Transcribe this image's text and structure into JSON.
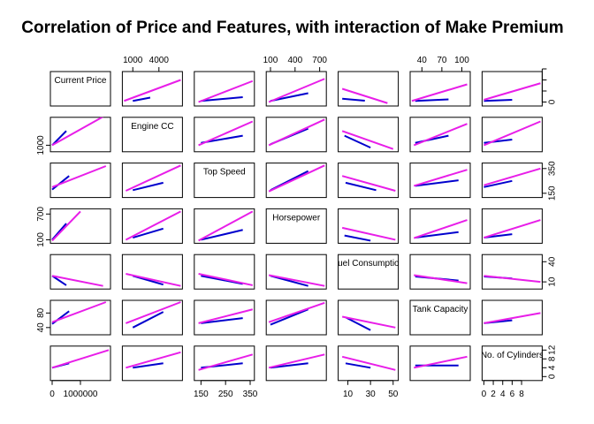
{
  "chart_data": {
    "type": "scatter-matrix",
    "title": "Correlation of Price and Features, with interaction of Make Premium",
    "variables": [
      "Current Price",
      "Engine CC",
      "Top Speed",
      "Horsepower",
      "Fuel Consumption",
      "Tank Capacity",
      "No. of Cylinders"
    ],
    "colors": {
      "blue": "#0000CD",
      "magenta": "#E81EE8"
    },
    "axes": [
      {
        "range": [
          0,
          2000000
        ],
        "ticks": [
          0,
          1000000
        ],
        "tick_labels": [
          "0",
          "1000000"
        ],
        "side": "bottom"
      },
      {
        "range": [
          0,
          6500
        ],
        "ticks": [
          1000,
          4000
        ],
        "tick_labels": [
          "1000",
          "4000"
        ],
        "side": "top"
      },
      {
        "range": [
          130,
          360
        ],
        "ticks": [
          150,
          250,
          350
        ],
        "tick_labels": [
          "150",
          "250",
          "350"
        ],
        "side": "bottom"
      },
      {
        "range": [
          70,
          760
        ],
        "ticks": [
          100,
          400,
          700
        ],
        "tick_labels": [
          "100",
          "400",
          "700"
        ],
        "side": "top"
      },
      {
        "range": [
          3,
          53
        ],
        "ticks": [
          10,
          30,
          50
        ],
        "tick_labels": [
          "10",
          "30",
          "50"
        ],
        "side": "bottom"
      },
      {
        "range": [
          25,
          110
        ],
        "ticks": [
          40,
          70,
          100
        ],
        "tick_labels": [
          "40",
          "70",
          "100"
        ],
        "side": "top"
      },
      {
        "range": [
          0,
          12
        ],
        "ticks": [
          0,
          2,
          4,
          6,
          8
        ],
        "tick_labels": [
          "0",
          "2",
          "4",
          "6",
          "8"
        ],
        "side": "bottom"
      }
    ],
    "axes_y": [
      {
        "ticks": [
          0
        ],
        "tick_labels": [
          "0"
        ],
        "side": "right",
        "minor_ticks": [
          500000,
          1000000,
          1500000
        ]
      },
      {
        "ticks": [
          1000
        ],
        "tick_labels": [
          "1000"
        ],
        "side": "left"
      },
      {
        "ticks": [
          150,
          350
        ],
        "tick_labels": [
          "150",
          "350"
        ],
        "side": "right"
      },
      {
        "ticks": [
          100,
          700
        ],
        "tick_labels": [
          "100",
          "700"
        ],
        "side": "left"
      },
      {
        "ticks": [
          10,
          40
        ],
        "tick_labels": [
          "10",
          "40"
        ],
        "side": "right"
      },
      {
        "ticks": [
          40,
          80
        ],
        "tick_labels": [
          "40",
          "80"
        ],
        "side": "left"
      },
      {
        "ticks": [
          0,
          4,
          8,
          12
        ],
        "tick_labels": [
          "0",
          "4",
          "8",
          "12"
        ],
        "side": "right"
      }
    ],
    "lines": [
      {
        "row": 0,
        "col": 1,
        "blue": [
          [
            1000,
            50000
          ],
          [
            3000,
            200000
          ]
        ],
        "magenta": [
          [
            0,
            50000
          ],
          [
            6500,
            1000000
          ]
        ]
      },
      {
        "row": 0,
        "col": 2,
        "blue": [
          [
            150,
            50000
          ],
          [
            320,
            220000
          ]
        ],
        "magenta": [
          [
            140,
            0
          ],
          [
            360,
            950000
          ]
        ]
      },
      {
        "row": 0,
        "col": 3,
        "blue": [
          [
            100,
            50000
          ],
          [
            560,
            400000
          ]
        ],
        "magenta": [
          [
            80,
            0
          ],
          [
            760,
            1050000
          ]
        ]
      },
      {
        "row": 0,
        "col": 4,
        "blue": [
          [
            5,
            150000
          ],
          [
            25,
            60000
          ]
        ],
        "magenta": [
          [
            5,
            600000
          ],
          [
            45,
            -50000
          ]
        ]
      },
      {
        "row": 0,
        "col": 5,
        "blue": [
          [
            30,
            50000
          ],
          [
            80,
            120000
          ]
        ],
        "magenta": [
          [
            25,
            50000
          ],
          [
            108,
            800000
          ]
        ]
      },
      {
        "row": 0,
        "col": 6,
        "blue": [
          [
            0,
            50000
          ],
          [
            6,
            100000
          ]
        ],
        "magenta": [
          [
            0,
            100000
          ],
          [
            12,
            850000
          ]
        ]
      },
      {
        "row": 1,
        "col": 0,
        "blue": [
          [
            0,
            1000
          ],
          [
            500000,
            4000
          ]
        ],
        "magenta": [
          [
            0,
            1000
          ],
          [
            1800000,
            7000
          ]
        ]
      },
      {
        "row": 1,
        "col": 2,
        "blue": [
          [
            150,
            1500
          ],
          [
            320,
            3000
          ]
        ],
        "magenta": [
          [
            140,
            1000
          ],
          [
            360,
            6000
          ]
        ]
      },
      {
        "row": 1,
        "col": 3,
        "blue": [
          [
            100,
            1200
          ],
          [
            560,
            4500
          ]
        ],
        "magenta": [
          [
            80,
            1000
          ],
          [
            760,
            6400
          ]
        ]
      },
      {
        "row": 1,
        "col": 4,
        "blue": [
          [
            7,
            3000
          ],
          [
            30,
            500
          ]
        ],
        "magenta": [
          [
            5,
            4000
          ],
          [
            50,
            200
          ]
        ]
      },
      {
        "row": 1,
        "col": 5,
        "blue": [
          [
            30,
            1500
          ],
          [
            80,
            3000
          ]
        ],
        "magenta": [
          [
            28,
            1000
          ],
          [
            108,
            5500
          ]
        ]
      },
      {
        "row": 1,
        "col": 6,
        "blue": [
          [
            0,
            1500
          ],
          [
            6,
            2200
          ]
        ],
        "magenta": [
          [
            0,
            1000
          ],
          [
            12,
            6000
          ]
        ]
      },
      {
        "row": 2,
        "col": 0,
        "blue": [
          [
            0,
            180
          ],
          [
            600000,
            290
          ]
        ],
        "magenta": [
          [
            0,
            200
          ],
          [
            1900000,
            370
          ]
        ]
      },
      {
        "row": 2,
        "col": 1,
        "blue": [
          [
            1000,
            175
          ],
          [
            4500,
            235
          ]
        ],
        "magenta": [
          [
            200,
            170
          ],
          [
            6500,
            375
          ]
        ]
      },
      {
        "row": 2,
        "col": 3,
        "blue": [
          [
            100,
            175
          ],
          [
            560,
            330
          ]
        ],
        "magenta": [
          [
            80,
            165
          ],
          [
            760,
            375
          ]
        ]
      },
      {
        "row": 2,
        "col": 4,
        "blue": [
          [
            8,
            235
          ],
          [
            35,
            175
          ]
        ],
        "magenta": [
          [
            5,
            290
          ],
          [
            52,
            170
          ]
        ]
      },
      {
        "row": 2,
        "col": 5,
        "blue": [
          [
            30,
            210
          ],
          [
            95,
            255
          ]
        ],
        "magenta": [
          [
            28,
            210
          ],
          [
            108,
            340
          ]
        ]
      },
      {
        "row": 2,
        "col": 6,
        "blue": [
          [
            0,
            200
          ],
          [
            6,
            250
          ]
        ],
        "magenta": [
          [
            0,
            215
          ],
          [
            12,
            350
          ]
        ]
      },
      {
        "row": 3,
        "col": 0,
        "blue": [
          [
            0,
            100
          ],
          [
            500000,
            480
          ]
        ],
        "magenta": [
          [
            0,
            80
          ],
          [
            1000000,
            760
          ]
        ]
      },
      {
        "row": 3,
        "col": 1,
        "blue": [
          [
            1000,
            150
          ],
          [
            4500,
            360
          ]
        ],
        "magenta": [
          [
            200,
            100
          ],
          [
            6500,
            760
          ]
        ]
      },
      {
        "row": 3,
        "col": 2,
        "blue": [
          [
            150,
            100
          ],
          [
            320,
            330
          ]
        ],
        "magenta": [
          [
            140,
            80
          ],
          [
            360,
            760
          ]
        ]
      },
      {
        "row": 3,
        "col": 4,
        "blue": [
          [
            7,
            200
          ],
          [
            30,
            80
          ]
        ],
        "magenta": [
          [
            5,
            380
          ],
          [
            52,
            100
          ]
        ]
      },
      {
        "row": 3,
        "col": 5,
        "blue": [
          [
            30,
            150
          ],
          [
            95,
            280
          ]
        ],
        "magenta": [
          [
            28,
            140
          ],
          [
            108,
            560
          ]
        ]
      },
      {
        "row": 3,
        "col": 6,
        "blue": [
          [
            0,
            150
          ],
          [
            6,
            230
          ]
        ],
        "magenta": [
          [
            0,
            150
          ],
          [
            12,
            560
          ]
        ]
      },
      {
        "row": 4,
        "col": 0,
        "blue": [
          [
            0,
            19
          ],
          [
            500000,
            5
          ]
        ],
        "magenta": [
          [
            0,
            19
          ],
          [
            1800000,
            4
          ]
        ]
      },
      {
        "row": 4,
        "col": 1,
        "blue": [
          [
            1000,
            19
          ],
          [
            4500,
            6
          ]
        ],
        "magenta": [
          [
            200,
            22
          ],
          [
            6500,
            4
          ]
        ]
      },
      {
        "row": 4,
        "col": 2,
        "blue": [
          [
            150,
            19
          ],
          [
            320,
            7
          ]
        ],
        "magenta": [
          [
            140,
            22
          ],
          [
            360,
            5
          ]
        ]
      },
      {
        "row": 4,
        "col": 3,
        "blue": [
          [
            100,
            19
          ],
          [
            560,
            4
          ]
        ],
        "magenta": [
          [
            80,
            20
          ],
          [
            760,
            4
          ]
        ]
      },
      {
        "row": 4,
        "col": 5,
        "blue": [
          [
            30,
            18
          ],
          [
            95,
            12
          ]
        ],
        "magenta": [
          [
            28,
            20
          ],
          [
            108,
            8
          ]
        ]
      },
      {
        "row": 4,
        "col": 6,
        "blue": [
          [
            0,
            18
          ],
          [
            6,
            15
          ]
        ],
        "magenta": [
          [
            0,
            19
          ],
          [
            12,
            10
          ]
        ]
      },
      {
        "row": 5,
        "col": 0,
        "blue": [
          [
            0,
            50
          ],
          [
            600000,
            85
          ]
        ],
        "magenta": [
          [
            0,
            55
          ],
          [
            1900000,
            110
          ]
        ]
      },
      {
        "row": 5,
        "col": 1,
        "blue": [
          [
            1000,
            40
          ],
          [
            4500,
            83
          ]
        ],
        "magenta": [
          [
            200,
            52
          ],
          [
            6500,
            110
          ]
        ]
      },
      {
        "row": 5,
        "col": 2,
        "blue": [
          [
            150,
            52
          ],
          [
            320,
            66
          ]
        ],
        "magenta": [
          [
            140,
            52
          ],
          [
            360,
            90
          ]
        ]
      },
      {
        "row": 5,
        "col": 3,
        "blue": [
          [
            100,
            48
          ],
          [
            560,
            90
          ]
        ],
        "magenta": [
          [
            80,
            55
          ],
          [
            760,
            108
          ]
        ]
      },
      {
        "row": 5,
        "col": 4,
        "blue": [
          [
            8,
            68
          ],
          [
            30,
            33
          ]
        ],
        "magenta": [
          [
            5,
            70
          ],
          [
            52,
            40
          ]
        ]
      },
      {
        "row": 5,
        "col": 6,
        "blue": [
          [
            0,
            52
          ],
          [
            6,
            60
          ]
        ],
        "magenta": [
          [
            0,
            52
          ],
          [
            12,
            80
          ]
        ]
      },
      {
        "row": 6,
        "col": 0,
        "blue": [
          [
            0,
            4
          ],
          [
            600000,
            6
          ]
        ],
        "magenta": [
          [
            0,
            4
          ],
          [
            2000000,
            12
          ]
        ]
      },
      {
        "row": 6,
        "col": 1,
        "blue": [
          [
            1000,
            4
          ],
          [
            4500,
            6
          ]
        ],
        "magenta": [
          [
            200,
            4
          ],
          [
            6500,
            11
          ]
        ]
      },
      {
        "row": 6,
        "col": 2,
        "blue": [
          [
            150,
            4
          ],
          [
            320,
            6
          ]
        ],
        "magenta": [
          [
            140,
            3
          ],
          [
            360,
            10
          ]
        ]
      },
      {
        "row": 6,
        "col": 3,
        "blue": [
          [
            100,
            4
          ],
          [
            560,
            6
          ]
        ],
        "magenta": [
          [
            80,
            4
          ],
          [
            760,
            10
          ]
        ]
      },
      {
        "row": 6,
        "col": 4,
        "blue": [
          [
            8,
            6
          ],
          [
            30,
            4
          ]
        ],
        "magenta": [
          [
            5,
            9
          ],
          [
            52,
            3
          ]
        ]
      },
      {
        "row": 6,
        "col": 5,
        "blue": [
          [
            30,
            5
          ],
          [
            95,
            5
          ]
        ],
        "magenta": [
          [
            28,
            4
          ],
          [
            108,
            9
          ]
        ]
      }
    ],
    "y_ranges": [
      [
        -100000,
        1300000
      ],
      [
        0,
        6500
      ],
      [
        130,
        380
      ],
      [
        60,
        780
      ],
      [
        2,
        48
      ],
      [
        25,
        110
      ],
      [
        -1,
        13
      ]
    ]
  }
}
